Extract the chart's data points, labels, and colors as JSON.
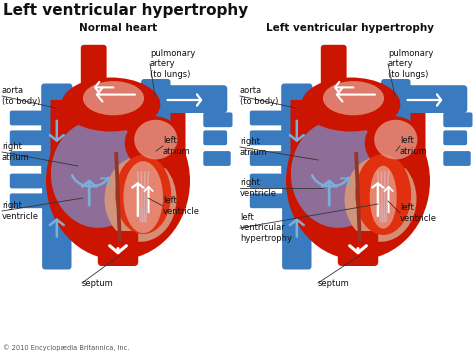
{
  "title": "Left ventricular hypertrophy",
  "subtitle_left": "Normal heart",
  "subtitle_right": "Left ventricular hypertrophy",
  "copyright": "© 2010 Encyclopædia Britannica, Inc.",
  "bg_color": "#ffffff",
  "red_dark": "#cc1500",
  "red_mid": "#e03010",
  "blue_dark": "#3a7abf",
  "blue_light": "#7ab0d8",
  "blue_pale": "#a8cde0",
  "purple": "#8878aa",
  "pink_light": "#e8a898",
  "peach": "#d4967a",
  "white": "#ffffff",
  "text_color": "#111111"
}
